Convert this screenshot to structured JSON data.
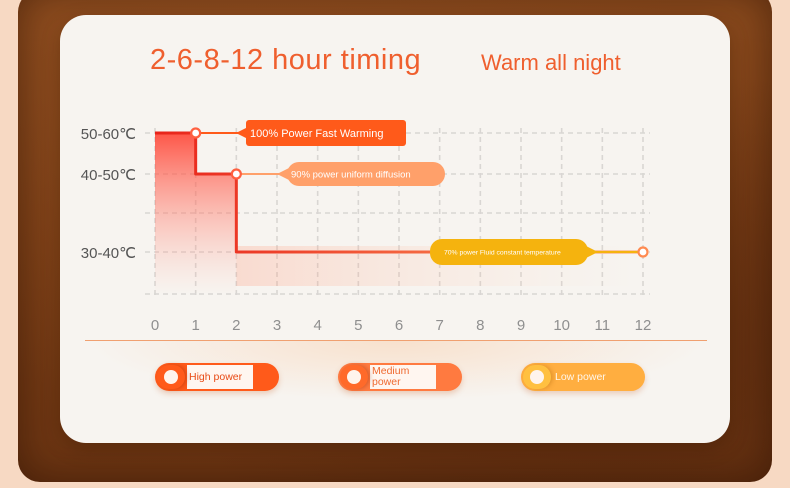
{
  "header": {
    "title_left": "2-6-8-12 hour timing",
    "title_right": "Warm all night"
  },
  "chart_data": {
    "type": "line",
    "x_ticks": [
      0,
      1,
      2,
      3,
      4,
      5,
      6,
      7,
      8,
      9,
      10,
      11,
      12
    ],
    "y_levels": [
      {
        "label": "50-60℃",
        "value": 3
      },
      {
        "label": "40-50℃",
        "value": 2
      },
      {
        "label": "30-40℃",
        "value": 1
      }
    ],
    "series": [
      {
        "points": [
          {
            "x": 0,
            "y": 3
          },
          {
            "x": 1,
            "y": 3
          },
          {
            "x": 1,
            "y": 2
          },
          {
            "x": 2,
            "y": 2
          },
          {
            "x": 2,
            "y": 1
          },
          {
            "x": 12,
            "y": 1
          }
        ],
        "markers": [
          {
            "x": 1,
            "y": 3
          },
          {
            "x": 2,
            "y": 2
          },
          {
            "x": 12,
            "y": 1
          }
        ]
      }
    ],
    "annotations": [
      {
        "text": "100% Power Fast Warming",
        "at": {
          "x": 1,
          "y": 3
        },
        "color": "#ff5a1a"
      },
      {
        "text": "90% power uniform diffusion",
        "at": {
          "x": 2,
          "y": 2
        },
        "color": "#ffa06a"
      },
      {
        "text": "70% power Fluid constant temperature",
        "at": {
          "x": 12,
          "y": 1
        },
        "color": "#f5b30e"
      }
    ],
    "grid": true,
    "colors": {
      "line_start": "#e8231a",
      "line_end": "#ffa060",
      "grid": "#d9d6d3",
      "tick_text": "#8f8f8f",
      "level_text": "#555555"
    }
  },
  "modes": [
    {
      "label": "High power",
      "color": "#ff5a1a"
    },
    {
      "label": "Medium power",
      "color": "#ff7a40"
    },
    {
      "label": "Low power",
      "color": "#ffae40"
    }
  ]
}
